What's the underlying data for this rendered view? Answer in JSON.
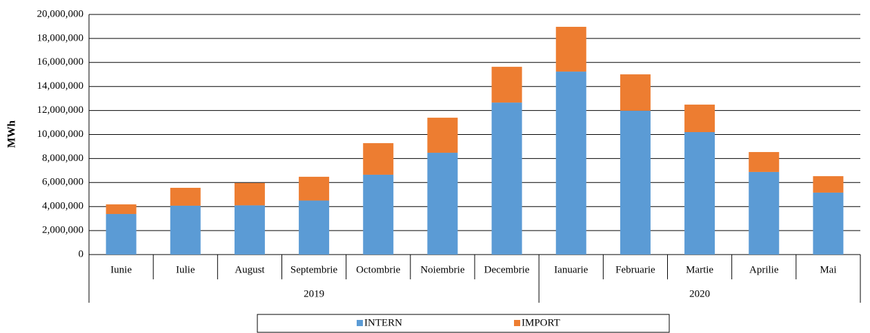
{
  "chart_data": {
    "type": "stacked_bar",
    "y_label": "MWh",
    "groups": [
      {
        "label": "2019",
        "categories": [
          "Iunie",
          "Iulie",
          "August",
          "Septembrie",
          "Octombrie",
          "Noiembrie",
          "Decembrie"
        ]
      },
      {
        "label": "2020",
        "categories": [
          "Ianuarie",
          "Februarie",
          "Martie",
          "Aprilie",
          "Mai"
        ]
      }
    ],
    "series": [
      {
        "name": "INTERN",
        "color": "#5b9bd5",
        "values": [
          3380000,
          4070000,
          4100000,
          4500000,
          6650000,
          8480000,
          12660000,
          15240000,
          11980000,
          10200000,
          6880000,
          5160000
        ]
      },
      {
        "name": "IMPORT",
        "color": "#ed7d31",
        "values": [
          800000,
          1490000,
          1860000,
          1980000,
          2630000,
          2920000,
          2980000,
          3730000,
          3030000,
          2290000,
          1660000,
          1370000
        ]
      }
    ],
    "ylim": [
      0,
      20000000
    ],
    "yticks": [
      0,
      {
        "value": 2000000,
        "label": "2,000,000"
      },
      {
        "value": 4000000,
        "label": "4,000,000"
      },
      {
        "value": 6000000,
        "label": "6,000,000"
      },
      {
        "value": 8000000,
        "label": "8,000,000"
      },
      {
        "value": 10000000,
        "label": "10,000,000"
      },
      {
        "value": 12000000,
        "label": "12,000,000"
      },
      {
        "value": 14000000,
        "label": "14,000,000"
      },
      {
        "value": 16000000,
        "label": "16,000,000"
      },
      {
        "value": 18000000,
        "label": "18,000,000"
      },
      {
        "value": 20000000,
        "label": "20,000,000"
      }
    ],
    "grid": true,
    "legend": "bottom"
  }
}
